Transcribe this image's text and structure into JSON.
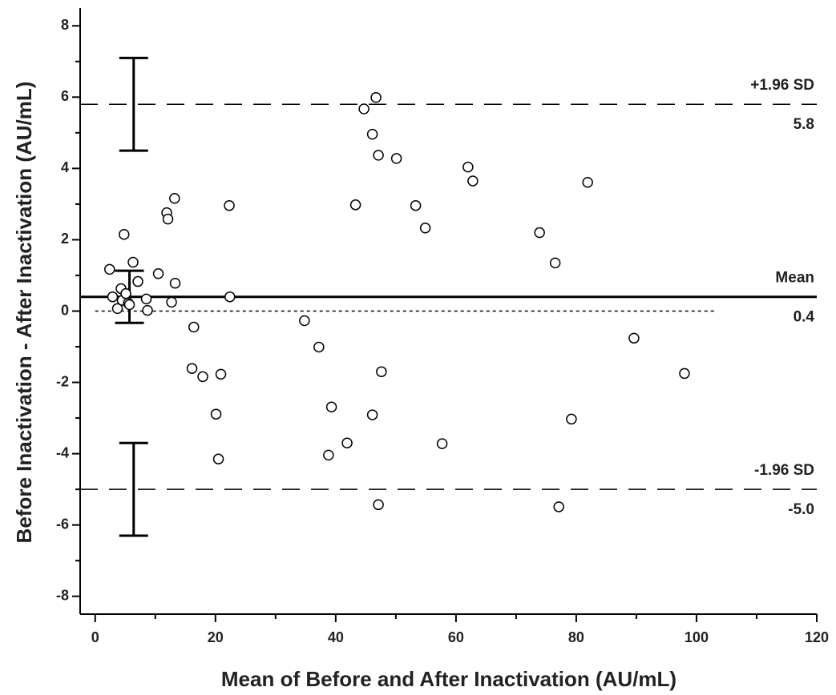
{
  "chart_data": {
    "type": "scatter",
    "x_label": "Mean of Before and After Inactivation (AU/mL)",
    "y_label": "Before Inactivation - After Inactivation (AU/mL)",
    "xlim": [
      -2.5,
      120
    ],
    "ylim": [
      -8.5,
      8.5
    ],
    "xticks": [
      0,
      20,
      40,
      60,
      80,
      100,
      120
    ],
    "xminorticks": [
      10,
      30,
      50,
      70,
      90,
      110
    ],
    "yticks": [
      -8,
      -6,
      -4,
      -2,
      0,
      2,
      4,
      6,
      8
    ],
    "yminorticks": [
      -7,
      -5,
      -3,
      -1,
      1,
      3,
      5,
      7
    ],
    "marker_color": "#000000",
    "x": [
      2.4,
      2.9,
      3.7,
      4.3,
      4.8,
      4.5,
      5.5,
      5.1,
      5.7,
      6.3,
      7.1,
      8.5,
      8.7,
      10.5,
      11.9,
      12.1,
      12.7,
      13.2,
      13.3,
      16.4,
      16.1,
      17.9,
      20.9,
      20.1,
      20.5,
      22.3,
      22.4,
      34.8,
      37.2,
      38.8,
      39.3,
      41.9,
      43.3,
      44.7,
      46.1,
      46.7,
      47.1,
      46.1,
      47.6,
      47.1,
      50.1,
      53.3,
      54.9,
      57.7,
      62.0,
      62.8,
      73.9,
      76.5,
      77.1,
      79.2,
      81.9,
      89.6,
      98.0
    ],
    "y": [
      1.17,
      0.4,
      0.07,
      0.63,
      2.15,
      0.3,
      0.22,
      0.49,
      0.18,
      1.37,
      0.83,
      0.34,
      0.02,
      1.05,
      2.76,
      2.58,
      0.25,
      3.16,
      0.78,
      -0.45,
      -1.61,
      -1.84,
      -1.77,
      -2.89,
      -4.15,
      2.96,
      0.4,
      -0.27,
      -1.01,
      -4.04,
      -2.69,
      -3.7,
      2.98,
      5.67,
      4.96,
      5.99,
      4.37,
      -2.91,
      -1.7,
      -5.43,
      4.28,
      2.96,
      2.33,
      -3.72,
      4.04,
      3.65,
      2.2,
      1.35,
      -5.49,
      -3.03,
      3.61,
      -0.76,
      -1.75
    ],
    "reference_lines": [
      {
        "label": "+1.96 SD",
        "value": 5.8,
        "value_label": "5.8",
        "style": "dashed",
        "ci_x": 6.4,
        "ci_error": 1.3
      },
      {
        "label": "Mean",
        "value": 0.4,
        "value_label": "0.4",
        "style": "solid",
        "ci_x": 5.7,
        "ci_error": 0.73
      },
      {
        "label": "-1.96 SD",
        "value": -5.0,
        "value_label": "-5.0",
        "style": "dashed",
        "ci_x": 6.4,
        "ci_error": 1.3
      }
    ],
    "zero_line": {
      "value": 0,
      "x_range": [
        0,
        103.2
      ]
    }
  }
}
